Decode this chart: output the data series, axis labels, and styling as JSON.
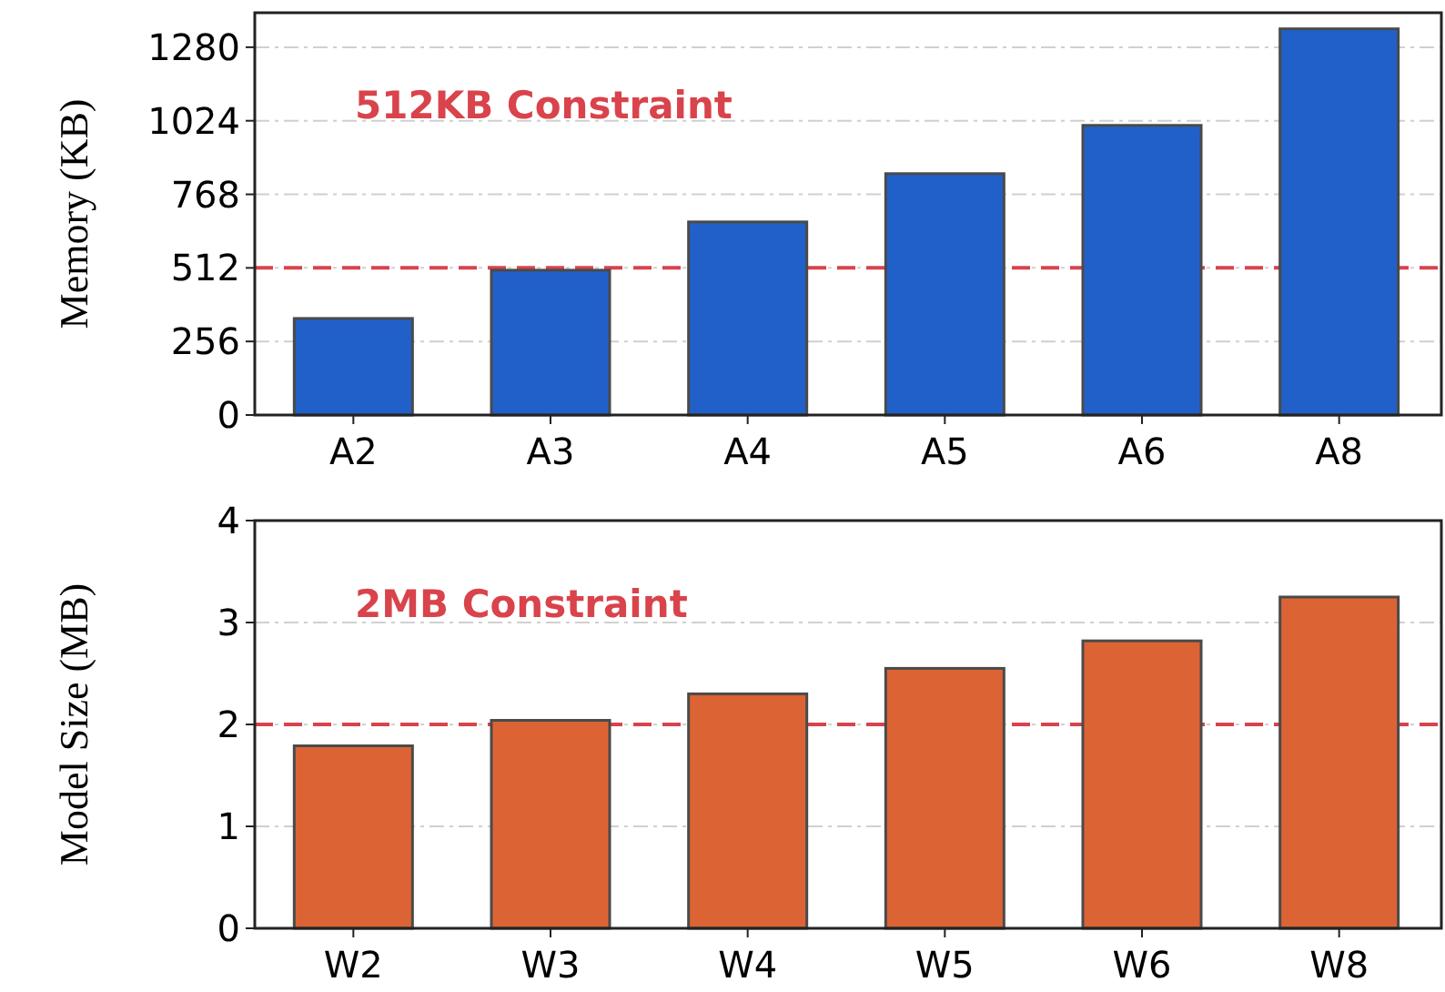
{
  "chart_data": [
    {
      "type": "bar",
      "ylabel": "Memory (KB)",
      "categories": [
        "A2",
        "A3",
        "A4",
        "A5",
        "A6",
        "A8"
      ],
      "values": [
        336,
        504,
        672,
        840,
        1008,
        1344
      ],
      "color": "#2260c9",
      "ylim": [
        0,
        1400
      ],
      "yticks": [
        0,
        256,
        512,
        768,
        1024,
        1280
      ],
      "grid": "y",
      "ref_lines": [
        {
          "axis": "y",
          "value": 512,
          "label": "512KB Constraint",
          "color": "#d9434b",
          "line_style": "dashed"
        }
      ]
    },
    {
      "type": "bar",
      "ylabel": "Model Size (MB)",
      "categories": [
        "W2",
        "W3",
        "W4",
        "W5",
        "W6",
        "W8"
      ],
      "values": [
        1.79,
        2.04,
        2.3,
        2.55,
        2.82,
        3.25
      ],
      "color": "#dc6434",
      "ylim": [
        0,
        4
      ],
      "yticks": [
        0,
        1,
        2,
        3,
        4
      ],
      "grid": "y",
      "ref_lines": [
        {
          "axis": "y",
          "value": 2,
          "label": "2MB Constraint",
          "color": "#d9434b",
          "line_style": "dashed"
        }
      ]
    }
  ]
}
